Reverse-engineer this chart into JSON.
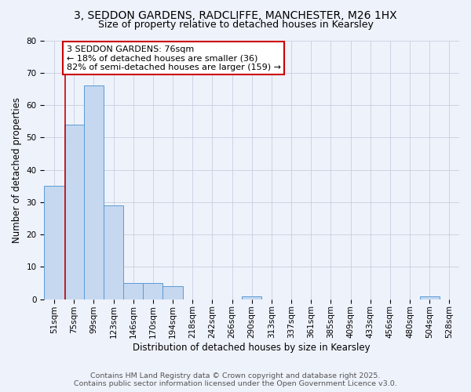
{
  "title": "3, SEDDON GARDENS, RADCLIFFE, MANCHESTER, M26 1HX",
  "subtitle": "Size of property relative to detached houses in Kearsley",
  "xlabel": "Distribution of detached houses by size in Kearsley",
  "ylabel": "Number of detached properties",
  "categories": [
    "51sqm",
    "75sqm",
    "99sqm",
    "123sqm",
    "146sqm",
    "170sqm",
    "194sqm",
    "218sqm",
    "242sqm",
    "266sqm",
    "290sqm",
    "313sqm",
    "337sqm",
    "361sqm",
    "385sqm",
    "409sqm",
    "433sqm",
    "456sqm",
    "480sqm",
    "504sqm",
    "528sqm"
  ],
  "values": [
    35,
    54,
    66,
    29,
    5,
    5,
    4,
    0,
    0,
    0,
    1,
    0,
    0,
    0,
    0,
    0,
    0,
    0,
    0,
    1,
    0
  ],
  "bar_color": "#c5d8f0",
  "bar_edge_color": "#5b9bd5",
  "ylim": [
    0,
    80
  ],
  "yticks": [
    0,
    10,
    20,
    30,
    40,
    50,
    60,
    70,
    80
  ],
  "red_line_x": 0.575,
  "annotation_title": "3 SEDDON GARDENS: 76sqm",
  "annotation_line1": "← 18% of detached houses are smaller (36)",
  "annotation_line2": "82% of semi-detached houses are larger (159) →",
  "footer1": "Contains HM Land Registry data © Crown copyright and database right 2025.",
  "footer2": "Contains public sector information licensed under the Open Government Licence v3.0.",
  "background_color": "#eef2fb",
  "annotation_box_color": "#ffffff",
  "annotation_border_color": "#cc0000",
  "grid_color": "#c8cfe0",
  "title_fontsize": 10,
  "subtitle_fontsize": 9,
  "axis_label_fontsize": 8.5,
  "tick_fontsize": 7.5,
  "footer_fontsize": 6.8,
  "annotation_fontsize": 8
}
